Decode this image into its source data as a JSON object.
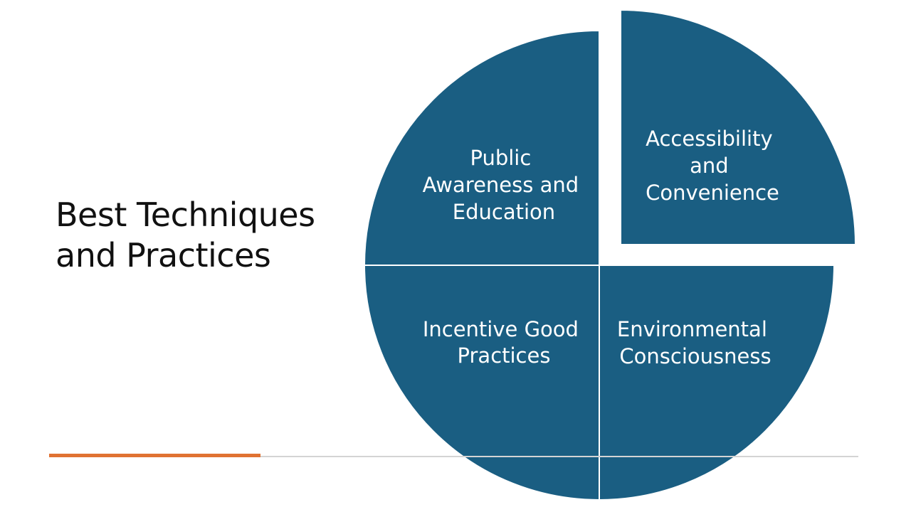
{
  "slide": {
    "title_lines": [
      "Best Techniques",
      "and Practices"
    ]
  },
  "quadrants": [
    {
      "id": "top-left",
      "label_lines": [
        "Public",
        "Awareness and",
        "Education"
      ]
    },
    {
      "id": "top-right",
      "label_lines": [
        "Accessibility",
        "and",
        "Convenience"
      ]
    },
    {
      "id": "bottom-left",
      "label_lines": [
        "Incentive Good",
        "Practices"
      ]
    },
    {
      "id": "bottom-right",
      "label_lines": [
        "Environmental",
        "Consciousness"
      ]
    }
  ],
  "colors": {
    "segment_fill": "#1a5e82",
    "accent_rule": "#e07232",
    "title_text": "#111111"
  }
}
